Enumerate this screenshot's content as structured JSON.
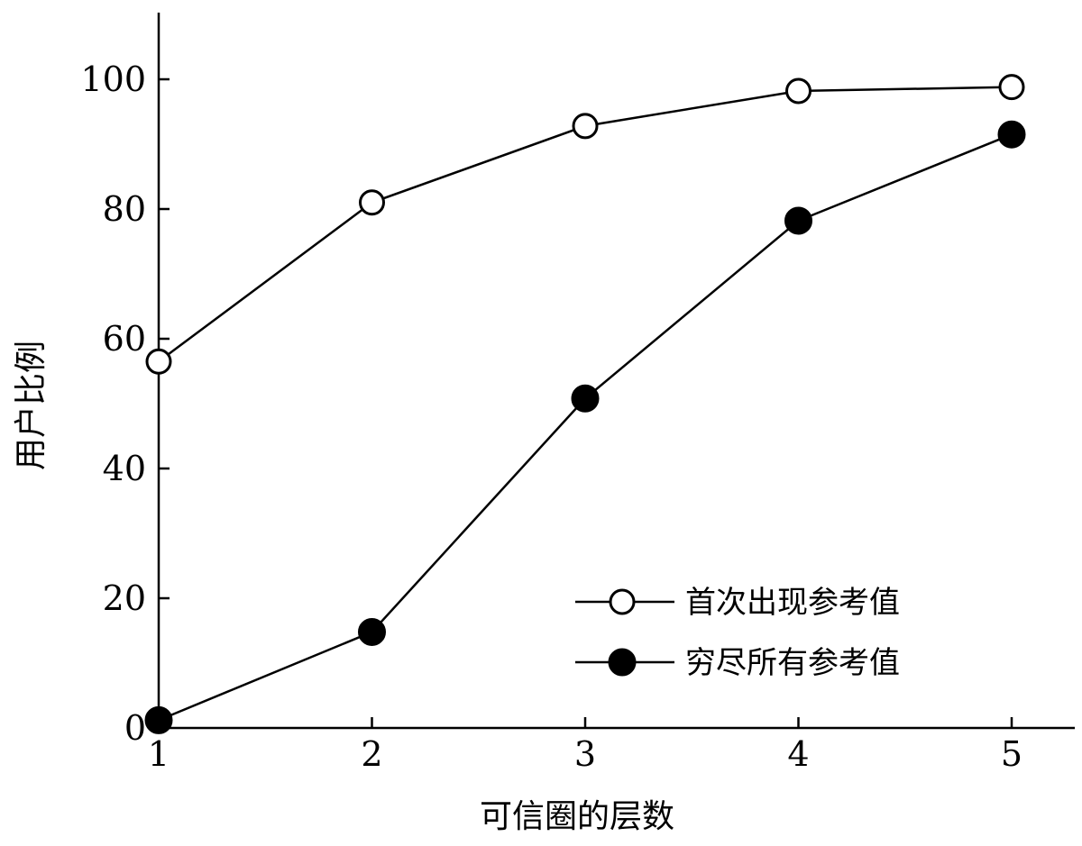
{
  "chart_data": {
    "type": "line",
    "title": "",
    "xlabel": "可信圈的层数",
    "ylabel": "用户比例",
    "x": [
      1,
      2,
      3,
      4,
      5
    ],
    "xlim": [
      1,
      5
    ],
    "ylim": [
      0,
      100
    ],
    "x_ticks": [
      "1",
      "2",
      "3",
      "4",
      "5"
    ],
    "y_ticks": [
      "0",
      "20",
      "40",
      "60",
      "80",
      "100"
    ],
    "grid": false,
    "legend_position": "bottom-right",
    "series": [
      {
        "name": "首次出现参考值",
        "marker": "open-circle",
        "color": "#000000",
        "values": [
          56.5,
          81,
          92.8,
          98.2,
          98.8
        ]
      },
      {
        "name": "穷尽所有参考值",
        "marker": "filled-circle",
        "color": "#000000",
        "values": [
          1.2,
          14.8,
          50.8,
          78.2,
          91.5
        ]
      }
    ]
  }
}
